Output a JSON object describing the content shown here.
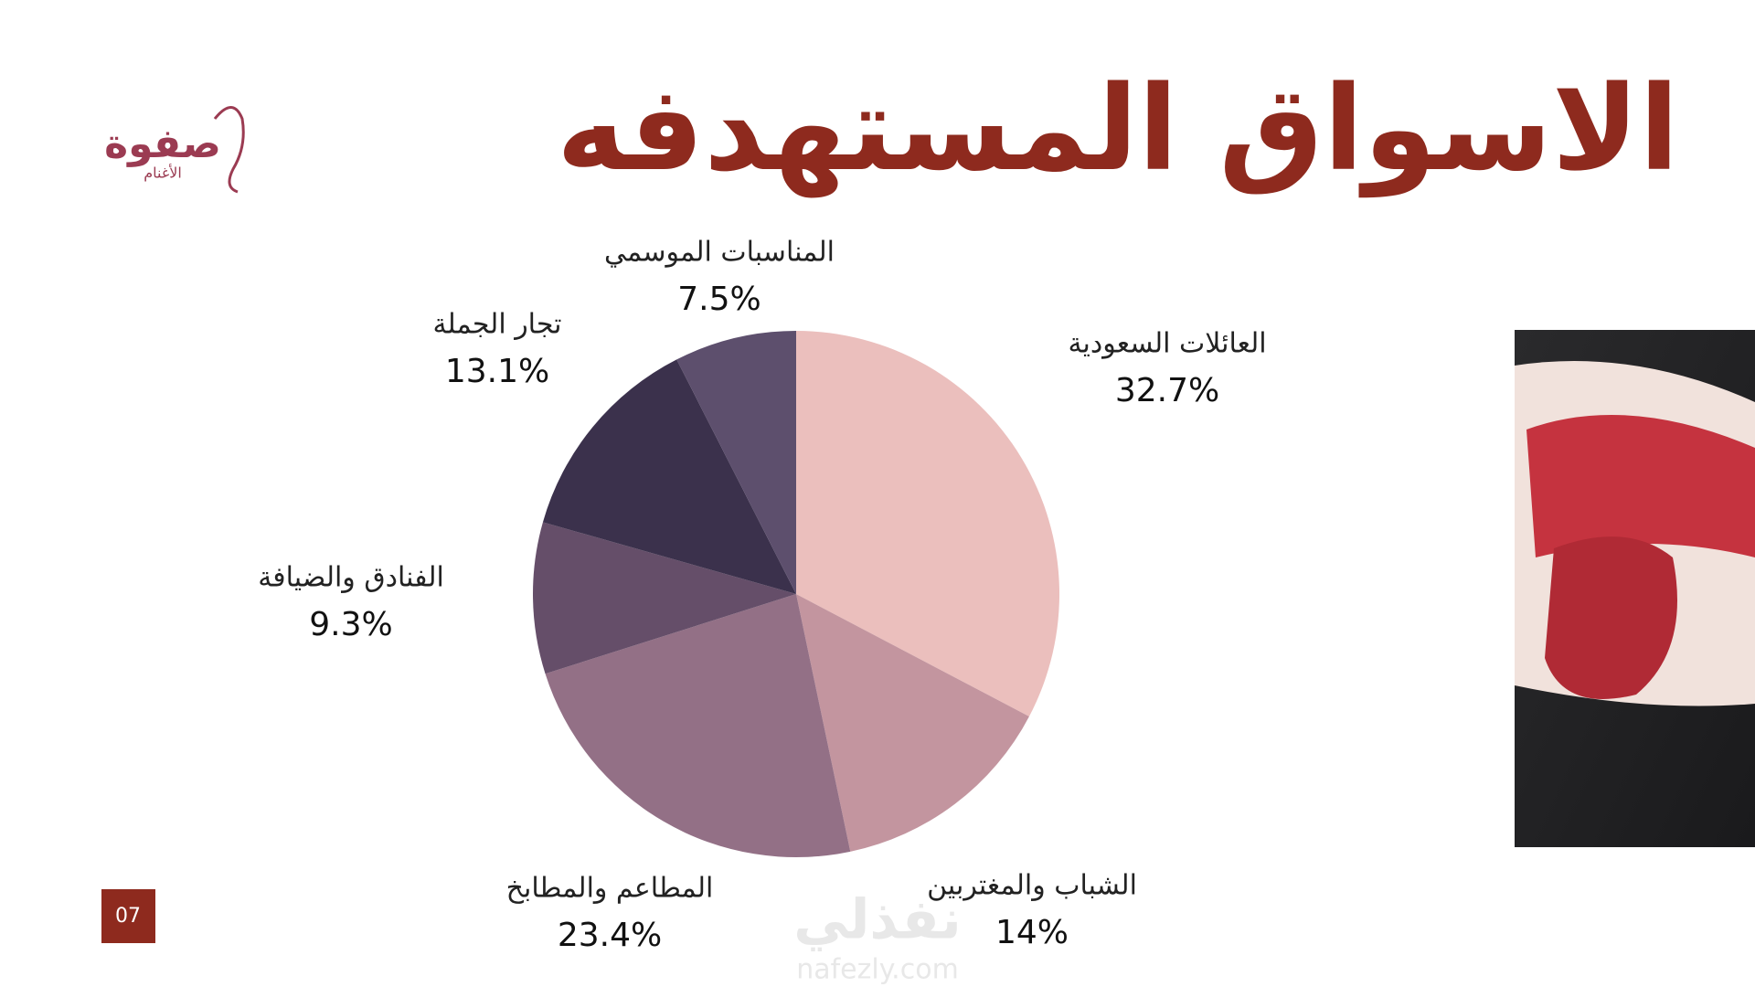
{
  "logo": {
    "name": "صفوة",
    "subtitle": "الأغنام"
  },
  "page_number": "07",
  "watermark": {
    "name": "نفذلي",
    "site": "nafezly.com"
  },
  "chart_data": {
    "type": "pie",
    "title": "الاسواق المستهدفه",
    "categories": [
      "العائلات السعودية",
      "الشباب والمغتربين",
      "المطاعم والمطابخ",
      "الفنادق والضيافة",
      "تجار الجملة",
      "المناسبات الموسمي"
    ],
    "values": [
      32.7,
      14,
      23.4,
      9.3,
      13.1,
      7.5
    ],
    "value_labels": [
      "32.7%",
      "14%",
      "23.4%",
      "9.3%",
      "13.1%",
      "7.5%"
    ],
    "colors": [
      "#ebbfbd",
      "#c3959f",
      "#937086",
      "#654e69",
      "#3b314c",
      "#5d4f6d"
    ]
  }
}
